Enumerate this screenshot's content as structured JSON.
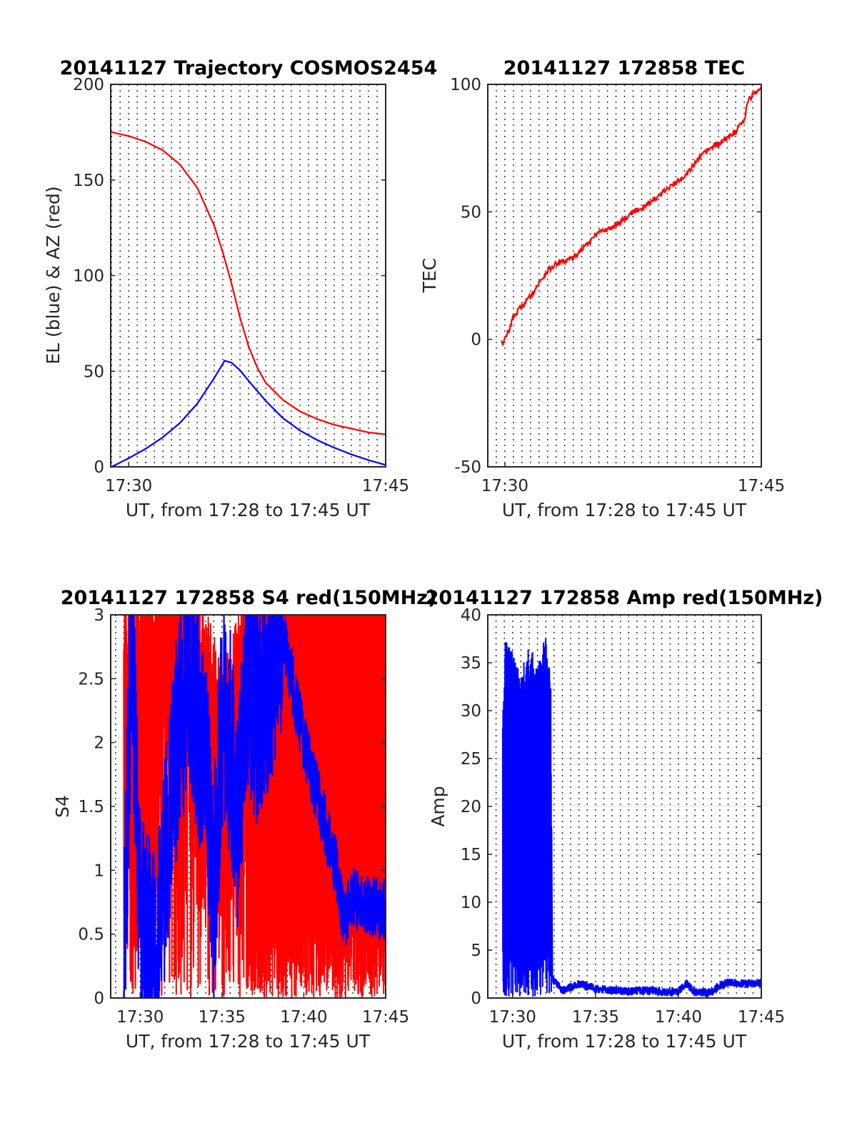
{
  "chart_data": [
    {
      "type": "line",
      "title": "20141127 Trajectory COSMOS2454",
      "xlabel": "UT, from 17:28 to 17:45 UT",
      "ylabel": "EL (blue) & AZ (red)",
      "x_range_minutes": [
        28.95,
        45.0
      ],
      "ylim": [
        0,
        200
      ],
      "x_ticks": [
        {
          "value": 30,
          "label": "17:30"
        },
        {
          "value": 45,
          "label": "17:45"
        }
      ],
      "y_ticks": [
        {
          "value": 0,
          "label": "0"
        },
        {
          "value": 50,
          "label": "50"
        },
        {
          "value": 100,
          "label": "100"
        },
        {
          "value": 150,
          "label": "150"
        },
        {
          "value": 200,
          "label": "200"
        }
      ],
      "grid": "dotted vertical every 30 s, light horizontal at y ticks",
      "series": [
        {
          "color": "#ff0000",
          "x": [
            29.0,
            30.0,
            31.0,
            32.0,
            33.0,
            34.0,
            35.0,
            35.5,
            36.0,
            36.5,
            37.0,
            37.5,
            38.0,
            39.0,
            40.0,
            41.0,
            42.0,
            43.0,
            44.0,
            45.0
          ],
          "y": [
            175.0,
            173.0,
            170.0,
            165.5,
            158.0,
            146.0,
            126.0,
            112.0,
            96.0,
            78.0,
            63.0,
            52.0,
            44.0,
            35.0,
            29.0,
            25.0,
            22.0,
            20.0,
            18.0,
            17.0
          ]
        },
        {
          "color": "#0000ff",
          "x": [
            29.0,
            30.0,
            31.0,
            32.0,
            33.0,
            34.0,
            35.0,
            35.6,
            36.0,
            36.5,
            37.0,
            38.0,
            39.0,
            40.0,
            41.0,
            42.0,
            43.0,
            44.0,
            45.0
          ],
          "y": [
            0.0,
            4.5,
            9.5,
            15.5,
            23.0,
            33.0,
            46.5,
            55.5,
            54.5,
            50.5,
            45.0,
            34.5,
            25.5,
            19.0,
            14.0,
            10.0,
            6.5,
            3.5,
            1.0
          ]
        }
      ]
    },
    {
      "type": "line",
      "title": "20141127 172858 TEC",
      "xlabel": "UT, from 17:28 to 17:45 UT",
      "ylabel": "TEC",
      "x_range_minutes": [
        29.0,
        45.0
      ],
      "ylim": [
        -50,
        100
      ],
      "x_ticks": [
        {
          "value": 30,
          "label": "17:30"
        },
        {
          "value": 45,
          "label": "17:45"
        }
      ],
      "y_ticks": [
        {
          "value": -50,
          "label": "-50"
        },
        {
          "value": 0,
          "label": "0"
        },
        {
          "value": 50,
          "label": "50"
        },
        {
          "value": 100,
          "label": "100"
        }
      ],
      "grid": "dotted vertical every 30 s, light horizontal at y ticks",
      "series": [
        {
          "color": "#ff0000",
          "x": [
            29.8,
            29.9,
            30.0,
            30.2,
            30.5,
            31.0,
            31.5,
            32.0,
            32.5,
            33.0,
            33.5,
            34.0,
            34.5,
            35.0,
            35.5,
            36.0,
            36.5,
            37.0,
            37.5,
            38.0,
            38.5,
            39.0,
            39.5,
            40.0,
            40.5,
            41.0,
            41.5,
            42.0,
            42.5,
            43.0,
            43.5,
            44.0,
            44.2,
            44.5,
            45.0
          ],
          "y": [
            0.0,
            -2.0,
            0.0,
            3.0,
            9.0,
            13.0,
            17.0,
            22.0,
            27.0,
            29.5,
            30.5,
            32.0,
            35.5,
            38.5,
            42.5,
            43.0,
            45.0,
            47.5,
            50.0,
            51.5,
            54.0,
            56.0,
            59.0,
            61.5,
            64.0,
            68.0,
            72.0,
            75.0,
            76.5,
            79.0,
            81.5,
            86.0,
            93.0,
            96.0,
            99.0
          ]
        }
      ]
    },
    {
      "type": "line",
      "title": "20141127 172858 S4 red(150MHz)",
      "xlabel": "UT, from 17:28 to 17:45 UT",
      "ylabel": "S4",
      "x_range_minutes": [
        28.2,
        45.0
      ],
      "ylim": [
        0,
        3
      ],
      "x_ticks": [
        {
          "value": 30,
          "label": "17:30"
        },
        {
          "value": 35,
          "label": "17:35"
        },
        {
          "value": 40,
          "label": "17:40"
        },
        {
          "value": 45,
          "label": "17:45"
        }
      ],
      "y_ticks": [
        {
          "value": 0,
          "label": "0"
        },
        {
          "value": 0.5,
          "label": "0.5"
        },
        {
          "value": 1,
          "label": "1"
        },
        {
          "value": 1.5,
          "label": "1.5"
        },
        {
          "value": 2,
          "label": "2"
        },
        {
          "value": 2.5,
          "label": "2.5"
        },
        {
          "value": 3,
          "label": "3"
        }
      ],
      "grid": "dotted vertical every 30 s, light horizontal at y ticks",
      "series": [
        {
          "color": "#ff0000",
          "style": "dense noisy vertical traces filling 0 to 3 for most of 17:29 to 17:45",
          "x": [
            29.0,
            31.0,
            33.0,
            35.0,
            37.0,
            39.0,
            41.0,
            43.0,
            45.0
          ],
          "y": [
            2.5,
            2.8,
            3.0,
            2.0,
            3.0,
            3.0,
            3.0,
            3.0,
            3.0
          ]
        },
        {
          "color": "#0000ff",
          "style": "noisy trace",
          "x": [
            29.0,
            29.5,
            30.0,
            31.0,
            32.0,
            33.0,
            34.0,
            34.5,
            35.0,
            35.5,
            36.0,
            36.5,
            37.0,
            38.0,
            38.5,
            40.0,
            41.0,
            42.0,
            42.5,
            43.0,
            44.0,
            45.0
          ],
          "y": [
            0.2,
            2.9,
            0.6,
            0.2,
            1.8,
            2.5,
            1.8,
            0.8,
            2.2,
            2.0,
            1.4,
            2.6,
            2.2,
            2.5,
            3.0,
            2.0,
            1.5,
            1.0,
            0.6,
            0.8,
            0.7,
            0.7
          ]
        }
      ]
    },
    {
      "type": "line",
      "title": "20141127 172858 Amp red(150MHz)",
      "xlabel": "UT, from 17:28 to 17:45 UT",
      "ylabel": "Amp",
      "x_range_minutes": [
        28.5,
        45.0
      ],
      "ylim": [
        0,
        40
      ],
      "x_ticks": [
        {
          "value": 30,
          "label": "17:30"
        },
        {
          "value": 35,
          "label": "17:35"
        },
        {
          "value": 40,
          "label": "17:40"
        },
        {
          "value": 45,
          "label": "17:45"
        }
      ],
      "y_ticks": [
        {
          "value": 0,
          "label": "0"
        },
        {
          "value": 5,
          "label": "5"
        },
        {
          "value": 10,
          "label": "10"
        },
        {
          "value": 15,
          "label": "15"
        },
        {
          "value": 20,
          "label": "20"
        },
        {
          "value": 25,
          "label": "25"
        },
        {
          "value": 30,
          "label": "30"
        },
        {
          "value": 35,
          "label": "35"
        },
        {
          "value": 40,
          "label": "40"
        }
      ],
      "grid": "dotted vertical every 30 s, light horizontal at y ticks",
      "series": [
        {
          "color": "#0000ff",
          "style": "dense noisy trace",
          "x": [
            29.4,
            29.6,
            30.0,
            30.5,
            31.0,
            31.5,
            32.0,
            32.3,
            32.4,
            33.0,
            34.0,
            35.0,
            36.0,
            37.0,
            38.0,
            39.0,
            40.0,
            40.5,
            41.0,
            42.0,
            42.5,
            43.0,
            44.0,
            45.0
          ],
          "y": [
            30.0,
            39.0,
            36.0,
            34.0,
            37.0,
            35.0,
            38.0,
            33.0,
            2.0,
            0.8,
            1.5,
            1.0,
            0.8,
            0.7,
            0.8,
            0.6,
            0.7,
            1.5,
            0.6,
            0.6,
            1.3,
            1.6,
            1.5,
            1.6
          ]
        }
      ]
    }
  ]
}
